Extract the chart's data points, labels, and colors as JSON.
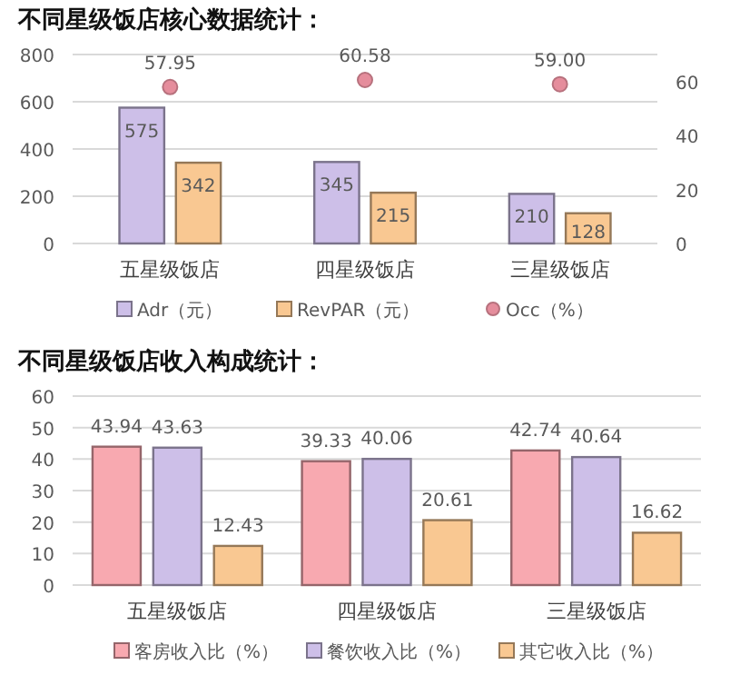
{
  "chart_data": [
    {
      "type": "bar",
      "title": "不同星级饭店核心数据统计：",
      "categories": [
        "五星级饭店",
        "四星级饭店",
        "三星级饭店"
      ],
      "series": [
        {
          "name": "Adr（元）",
          "color": "#cdbfe8",
          "values": [
            575,
            345,
            210
          ]
        },
        {
          "name": "RevPAR（元）",
          "color": "#f9c892",
          "values": [
            342,
            215,
            128
          ]
        },
        {
          "name": "Occ（%）",
          "type": "scatter",
          "axis": "y2",
          "marker": "circle",
          "color": "#e58d9c",
          "values": [
            57.95,
            60.58,
            59.0
          ],
          "value_labels": [
            "57.95",
            "60.58",
            "59.00"
          ]
        }
      ],
      "ylim": [
        0,
        800
      ],
      "yticks": [
        0,
        200,
        400,
        600,
        800
      ],
      "y2lim": [
        0,
        70
      ],
      "y2ticks": [
        0,
        20,
        40,
        60
      ],
      "grid": "y",
      "legend": "bottom",
      "data_labels": true
    },
    {
      "type": "bar",
      "title": "不同星级饭店收入构成统计：",
      "categories": [
        "五星级饭店",
        "四星级饭店",
        "三星级饭店"
      ],
      "series": [
        {
          "name": "客房收入比（%）",
          "color": "#f8a9b0",
          "values": [
            43.94,
            39.33,
            42.74
          ]
        },
        {
          "name": "餐饮收入比（%）",
          "color": "#cdbfe8",
          "values": [
            43.63,
            40.06,
            40.64
          ]
        },
        {
          "name": "其它收入比（%）",
          "color": "#f9c892",
          "values": [
            12.43,
            20.61,
            16.62
          ]
        }
      ],
      "ylim": [
        0,
        60
      ],
      "yticks": [
        0,
        10,
        20,
        30,
        40,
        50,
        60
      ],
      "grid": "y",
      "legend": "bottom",
      "data_labels": true
    }
  ]
}
